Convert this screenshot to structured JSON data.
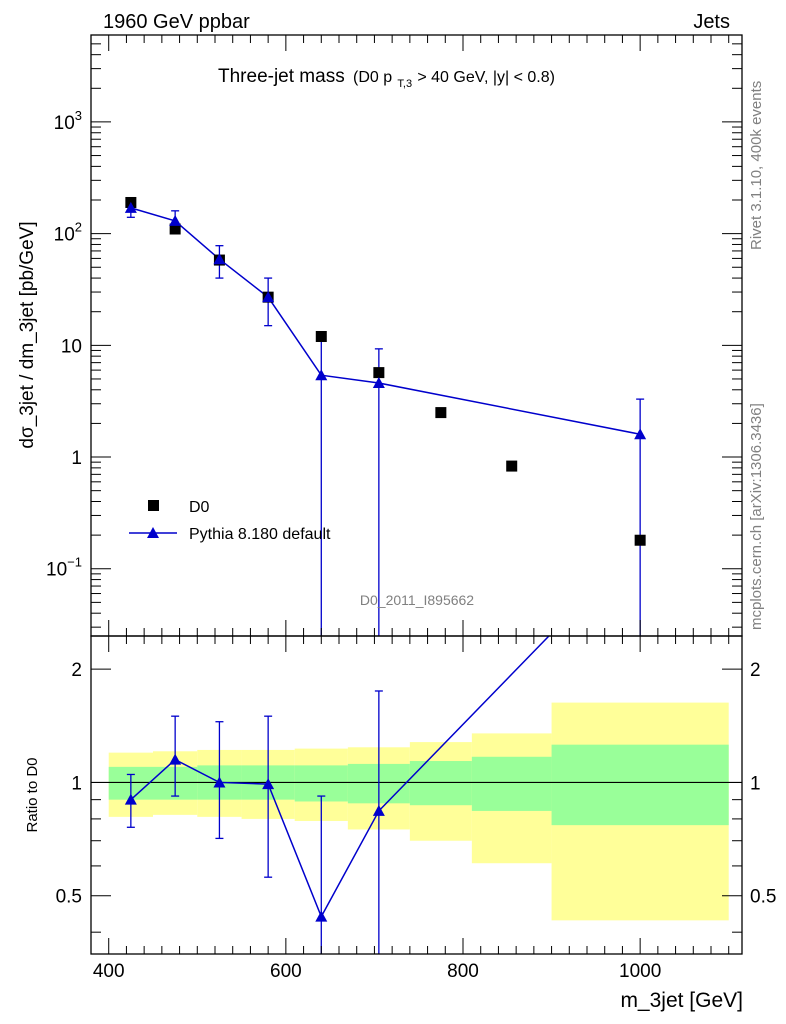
{
  "header": {
    "left": "1960 GeV ppbar",
    "right": "Jets"
  },
  "side_text": {
    "top": "Rivet 3.1.10,  400k events",
    "bottom": "mcplots.cern.ch [arXiv:1306.3436]"
  },
  "colors": {
    "data": "#000000",
    "mc": "#0000cc",
    "band_inner": "#99ff99",
    "band_outer": "#ffff99",
    "watermark": "#808080"
  },
  "chart_data": [
    {
      "type": "scatter",
      "title": "Three-jet mass",
      "title_cut": "(D0 p",
      "title_sub": "T,3",
      "title_cut_rest": " > 40 GeV, |y| < 0.8)",
      "watermark": "D0_2011_I895662",
      "ylabel": "dσ_3jet / dm_3jet [pb/GeV]",
      "yscale": "log",
      "ylim": [
        0.025,
        6000
      ],
      "xlim": [
        380,
        1115
      ],
      "yticks": [
        {
          "v": 0.1,
          "base": "10",
          "exp": "−1"
        },
        {
          "v": 1,
          "base": "1",
          "exp": ""
        },
        {
          "v": 10,
          "base": "10",
          "exp": ""
        },
        {
          "v": 100,
          "base": "10",
          "exp": "2"
        },
        {
          "v": 1000,
          "base": "10",
          "exp": "3"
        }
      ],
      "legend": [
        {
          "name": "D0",
          "marker": "square"
        },
        {
          "name": "Pythia 8.180 default",
          "marker": "triangle-line"
        }
      ],
      "series": [
        {
          "name": "D0",
          "x": [
            425,
            475,
            525,
            580,
            640,
            705,
            775,
            855,
            1000
          ],
          "y": [
            190,
            110,
            58,
            27,
            12,
            5.7,
            2.5,
            0.83,
            0.18
          ]
        },
        {
          "name": "Pythia 8.180 default",
          "x": [
            425,
            475,
            525,
            580,
            640,
            705,
            1000
          ],
          "y": [
            170,
            130,
            59,
            27,
            5.4,
            4.6,
            1.6
          ],
          "err_low": [
            140,
            100,
            40,
            15,
            0.001,
            0.001,
            0.001
          ],
          "err_high": [
            190,
            160,
            78,
            40,
            12,
            9.3,
            3.3
          ]
        }
      ]
    },
    {
      "type": "scatter",
      "ylabel": "Ratio to D0",
      "xlabel": "m_3jet [GeV]",
      "ylim": [
        0.35,
        2.45
      ],
      "xlim": [
        380,
        1115
      ],
      "yticks": [
        0.5,
        1,
        2
      ],
      "xticks": [
        400,
        600,
        800,
        1000
      ],
      "bands": [
        {
          "x0": 400,
          "x1": 450,
          "in_lo": 0.9,
          "in_hi": 1.1,
          "out_lo": 0.81,
          "out_hi": 1.2
        },
        {
          "x0": 450,
          "x1": 500,
          "in_lo": 0.9,
          "in_hi": 1.1,
          "out_lo": 0.82,
          "out_hi": 1.21
        },
        {
          "x0": 500,
          "x1": 550,
          "in_lo": 0.9,
          "in_hi": 1.11,
          "out_lo": 0.81,
          "out_hi": 1.22
        },
        {
          "x0": 550,
          "x1": 610,
          "in_lo": 0.9,
          "in_hi": 1.11,
          "out_lo": 0.8,
          "out_hi": 1.22
        },
        {
          "x0": 610,
          "x1": 670,
          "in_lo": 0.89,
          "in_hi": 1.11,
          "out_lo": 0.79,
          "out_hi": 1.23
        },
        {
          "x0": 670,
          "x1": 740,
          "in_lo": 0.88,
          "in_hi": 1.12,
          "out_lo": 0.75,
          "out_hi": 1.24
        },
        {
          "x0": 740,
          "x1": 810,
          "in_lo": 0.87,
          "in_hi": 1.14,
          "out_lo": 0.7,
          "out_hi": 1.28
        },
        {
          "x0": 810,
          "x1": 900,
          "in_lo": 0.84,
          "in_hi": 1.17,
          "out_lo": 0.61,
          "out_hi": 1.35
        },
        {
          "x0": 900,
          "x1": 1100,
          "in_lo": 0.77,
          "in_hi": 1.26,
          "out_lo": 0.43,
          "out_hi": 1.63
        }
      ],
      "series": [
        {
          "name": "Pythia 8.180 default",
          "x": [
            425,
            475,
            525,
            580,
            640,
            705,
            897
          ],
          "y": [
            0.9,
            1.15,
            1.0,
            0.99,
            0.44,
            0.84,
            2.45
          ],
          "err_low": [
            0.76,
            0.92,
            0.71,
            0.56,
            0.2,
            0.2,
            null
          ],
          "err_high": [
            1.05,
            1.5,
            1.45,
            1.5,
            0.92,
            1.75,
            null
          ]
        }
      ]
    }
  ]
}
